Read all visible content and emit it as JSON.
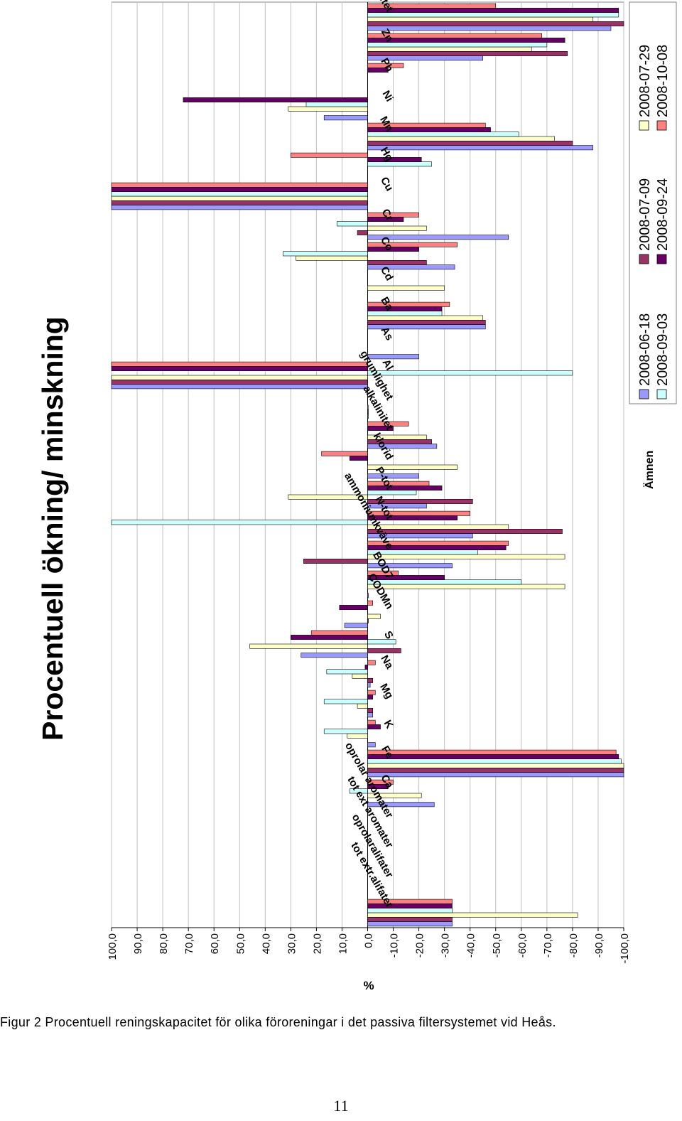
{
  "chart_data": {
    "type": "bar",
    "orientation": "horizontal",
    "title": "Procentuell ökning/ minskning",
    "xlabel": "Ämnen",
    "ylabel": "%",
    "ylim": [
      -100,
      100
    ],
    "ytick_labels": [
      "100,0",
      "90,0",
      "80,0",
      "70,0",
      "60,0",
      "50,0",
      "40,0",
      "30,0",
      "20,0",
      "10,0",
      "0,0",
      "-10,0",
      "-20,0",
      "-30,0",
      "-40,0",
      "-50,0",
      "-60,0",
      "-70,0",
      "-80,0",
      "-90,0",
      "-100,0"
    ],
    "grid": true,
    "legend_position": "bottom-right",
    "categories": [
      "tot extr.alifater",
      "oprolaralifater",
      "tot ext aromater",
      "oprolar aromater",
      "Ca",
      "Fe",
      "K",
      "Mg",
      "Na",
      "S",
      "CODMn",
      "BOD7",
      "ammoniumkväve",
      "N-tot",
      "P-tot",
      "klorid",
      "alkalinitet",
      "grumlighet",
      "Al",
      "As",
      "Ba",
      "Cd",
      "Co",
      "Cr",
      "Cu",
      "Hg",
      "Mn",
      "Ni",
      "Pb",
      "Zn",
      "turbiditet"
    ],
    "category_labels": [
      "tot extr.alifater",
      "oprolaralifater",
      "tot ext aromater",
      "oprolar aromater",
      "Ca",
      "Fe",
      "K",
      "Mg",
      "Na",
      "S",
      "CODMn",
      "BOD7",
      "ammoniumkväve",
      "N-tot",
      "P-tot",
      "klorid",
      "alkalinitet",
      "grumlighet",
      "Al",
      "As",
      "Ba",
      "Cd",
      "Co",
      "Cr",
      "Cu",
      "Hg",
      "Mn",
      "Ni",
      "Pb",
      "Zn",
      "turbiditet"
    ],
    "series": [
      {
        "name": "2008-06-18",
        "color": "#9999ff",
        "values": [
          -33,
          null,
          null,
          null,
          -26,
          -100,
          -3,
          -2,
          -1,
          26,
          9,
          0,
          -33,
          -41,
          -23,
          -20,
          -27,
          0,
          100,
          -20,
          -46,
          null,
          -34,
          -55,
          100,
          null,
          -88,
          17,
          null,
          -45,
          -95
        ]
      },
      {
        "name": "2008-07-09",
        "color": "#993366",
        "values": [
          -33,
          null,
          null,
          null,
          null,
          -100,
          null,
          -2,
          -2,
          -13,
          0,
          null,
          25,
          -76,
          -41,
          null,
          -25,
          0,
          100,
          null,
          -46,
          null,
          -23,
          4,
          100,
          null,
          -80,
          null,
          null,
          -78,
          -100
        ]
      },
      {
        "name": "2008-07-29",
        "color": "#ffffcc",
        "values": [
          -82,
          null,
          null,
          null,
          -21,
          -100,
          8,
          4,
          6,
          46,
          -5,
          -77,
          -77,
          -55,
          31,
          -35,
          -23,
          0,
          100,
          null,
          -45,
          -30,
          28,
          -23,
          100,
          null,
          -73,
          31,
          null,
          -64,
          -88
        ]
      },
      {
        "name": "2008-09-03",
        "color": "#ccffff",
        "values": [
          -33,
          null,
          null,
          null,
          7,
          -99,
          17,
          17,
          16,
          -11,
          null,
          -60,
          -43,
          100,
          -19,
          null,
          null,
          null,
          -80,
          null,
          -29,
          null,
          33,
          12,
          100,
          -25,
          -59,
          24,
          null,
          -70,
          -98
        ]
      },
      {
        "name": "2008-09-24",
        "color": "#660066",
        "values": [
          -33,
          null,
          null,
          null,
          -8,
          -98,
          -5,
          -2,
          1,
          30,
          11,
          -30,
          -54,
          -35,
          -29,
          7,
          -10,
          null,
          100,
          null,
          -29,
          null,
          -20,
          -14,
          100,
          -21,
          -48,
          72,
          -8,
          -77,
          -98
        ]
      },
      {
        "name": "2008-10-08",
        "color": "#ff8080",
        "values": [
          -33,
          null,
          null,
          null,
          -10,
          -97,
          -3,
          -3,
          -3,
          22,
          -2,
          -12,
          -55,
          -40,
          -24,
          18,
          -16,
          null,
          100,
          null,
          -32,
          null,
          -35,
          -20,
          100,
          30,
          -46,
          null,
          -14,
          -68,
          -50
        ]
      }
    ]
  },
  "caption": "Figur 2 Procentuell reningskapacitet för olika föroreningar i det passiva filtersystemet vid Heås.",
  "page_number": "11"
}
